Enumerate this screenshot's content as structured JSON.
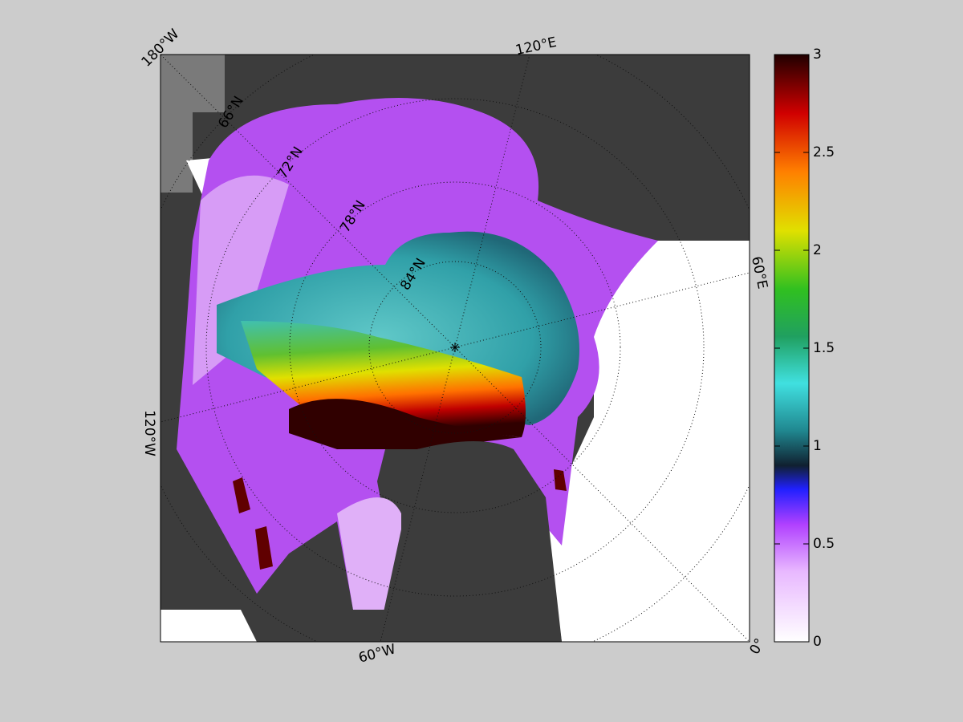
{
  "map": {
    "longitude_labels": [
      "180°W",
      "120°E",
      "60°E",
      "0°",
      "60°W",
      "120°W"
    ],
    "latitude_labels": [
      "66°N",
      "72°N",
      "78°N",
      "84°N"
    ]
  },
  "colorbar": {
    "lim": [
      0,
      3
    ],
    "ticks": [
      0,
      0.5,
      1,
      1.5,
      2,
      2.5,
      3
    ]
  }
}
